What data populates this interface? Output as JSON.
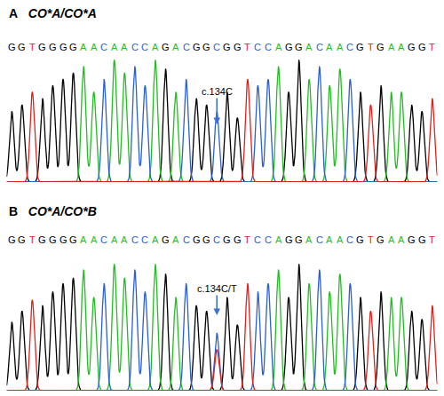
{
  "chart_data": {
    "type": "chromatogram",
    "base_colors": {
      "G": "#000000",
      "A": "#1fbf1f",
      "C": "#2a5fd6",
      "T": "#e0201b"
    },
    "ylim": [
      0,
      100
    ],
    "panels": [
      {
        "label": "A",
        "genotype": "CO*A/CO*A",
        "sequence": "GGTGGGGAACAACCAGACGGCGGTCCAGGACAACGTGAAGGT",
        "peaks": [
          55,
          60,
          70,
          65,
          75,
          80,
          85,
          90,
          70,
          80,
          95,
          85,
          90,
          75,
          95,
          88,
          70,
          80,
          65,
          60,
          55,
          70,
          50,
          80,
          75,
          80,
          90,
          70,
          95,
          80,
          90,
          75,
          88,
          80,
          70,
          60,
          75,
          70,
          70,
          60,
          55,
          65
        ],
        "variant": {
          "index": 20,
          "label": "c.134C"
        }
      },
      {
        "label": "B",
        "genotype": "CO*A/CO*B",
        "sequence": "GGTGGGGAACAACCAGACGGCGGTCCAGGACAACGTGAAGGT",
        "peaks": [
          50,
          58,
          66,
          62,
          72,
          78,
          82,
          88,
          68,
          78,
          92,
          82,
          88,
          72,
          92,
          85,
          68,
          78,
          62,
          58,
          42,
          68,
          48,
          78,
          72,
          78,
          88,
          68,
          92,
          78,
          88,
          72,
          85,
          78,
          68,
          58,
          72,
          68,
          68,
          58,
          52,
          62
        ],
        "variant": {
          "index": 20,
          "label": "c.134C/T",
          "secondary_base": "T",
          "secondary_peak": 30
        }
      }
    ]
  }
}
